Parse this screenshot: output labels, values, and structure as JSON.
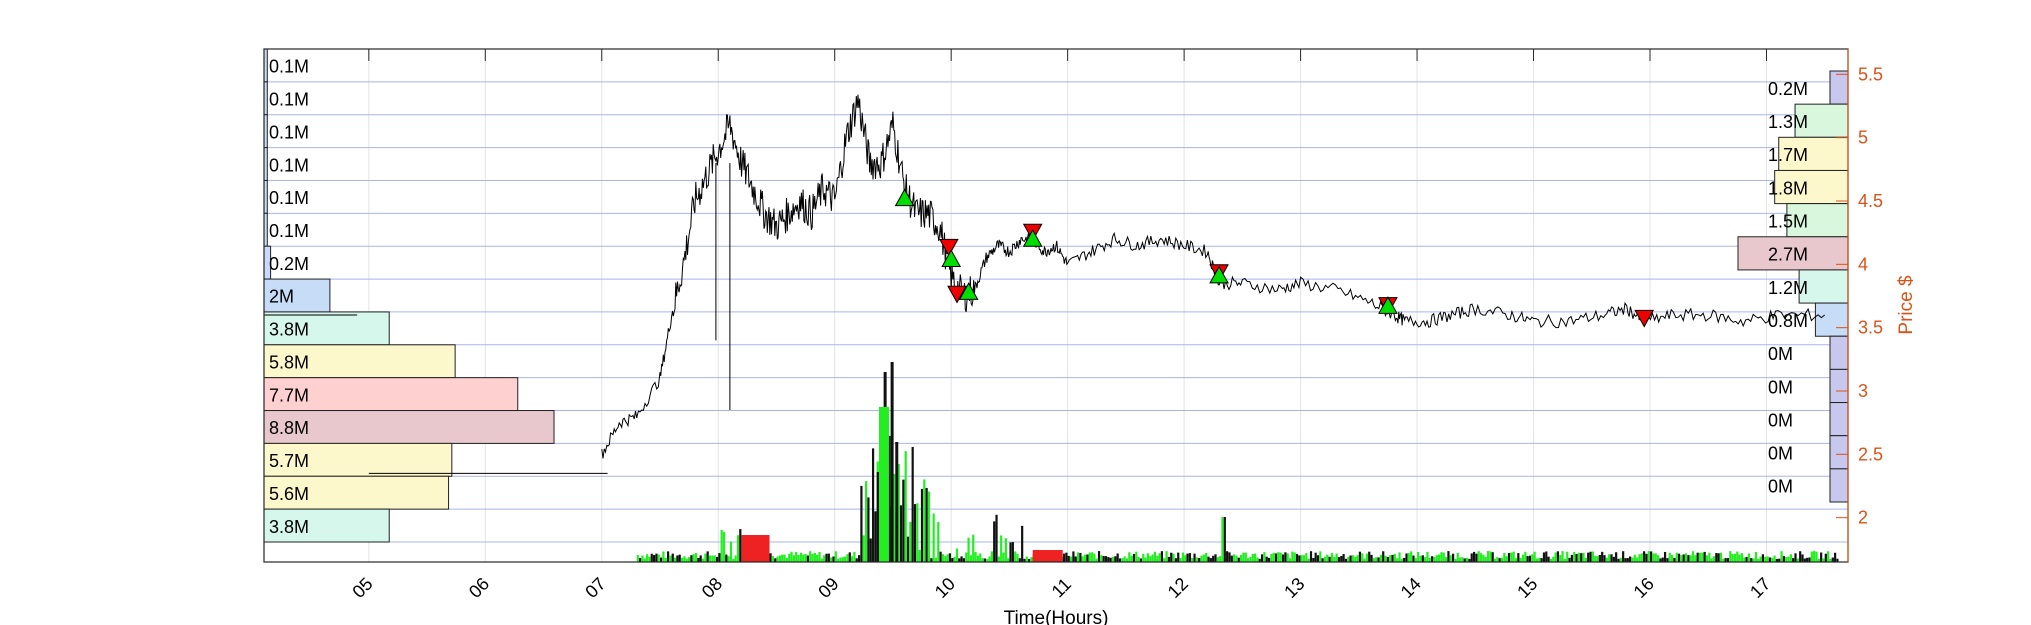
{
  "chart_data": {
    "type": "line",
    "xlabel": "Time(Hours)",
    "ylabel": "Price $",
    "xlim": [
      4.1,
      17.7
    ],
    "ylim": [
      1.65,
      5.7
    ],
    "x_ticks": [
      "05",
      "06",
      "07",
      "08",
      "09",
      "10",
      "11",
      "12",
      "13",
      "14",
      "15",
      "16",
      "17"
    ],
    "x_tick_values": [
      5,
      6,
      7,
      8,
      9,
      10,
      11,
      12,
      13,
      14,
      15,
      16,
      17
    ],
    "y_ticks": [
      "2",
      "2.5",
      "3",
      "3.5",
      "4",
      "4.5",
      "5",
      "5.5"
    ],
    "y_tick_values": [
      2,
      2.5,
      3,
      3.5,
      4,
      4.5,
      5,
      5.5
    ],
    "grid": true,
    "price_series": {
      "x": [
        7.0,
        7.15,
        7.3,
        7.5,
        7.6,
        7.7,
        7.8,
        7.9,
        8.0,
        8.1,
        8.2,
        8.3,
        8.4,
        8.5,
        8.6,
        8.7,
        8.8,
        8.9,
        9.0,
        9.1,
        9.2,
        9.3,
        9.4,
        9.5,
        9.6,
        9.7,
        9.8,
        9.9,
        10.0,
        10.1,
        10.2,
        10.3,
        10.4,
        10.5,
        10.6,
        10.7,
        10.8,
        10.9,
        11.0,
        11.2,
        11.4,
        11.6,
        11.8,
        12.0,
        12.2,
        12.3,
        12.5,
        12.8,
        13.0,
        13.3,
        13.6,
        13.8,
        13.9,
        14.1,
        14.3,
        14.5,
        14.8,
        15.0,
        15.3,
        15.6,
        15.8,
        15.95,
        16.2,
        16.5,
        16.8,
        17.1,
        17.5
      ],
      "y": [
        2.5,
        2.75,
        2.8,
        3.1,
        3.6,
        4.0,
        4.5,
        4.7,
        4.9,
        5.1,
        4.8,
        4.6,
        4.4,
        4.3,
        4.4,
        4.5,
        4.4,
        4.6,
        4.5,
        5.0,
        5.3,
        4.8,
        4.8,
        5.1,
        4.6,
        4.4,
        4.4,
        4.3,
        3.9,
        3.75,
        3.8,
        4.05,
        4.15,
        4.1,
        4.2,
        4.2,
        4.1,
        4.15,
        4.0,
        4.1,
        4.2,
        4.15,
        4.2,
        4.15,
        4.1,
        3.85,
        3.85,
        3.8,
        3.85,
        3.8,
        3.7,
        3.6,
        3.55,
        3.55,
        3.6,
        3.65,
        3.6,
        3.55,
        3.55,
        3.6,
        3.65,
        3.55,
        3.6,
        3.6,
        3.55,
        3.6,
        3.6
      ]
    },
    "buy_markers": {
      "x": [
        9.6,
        10.0,
        10.15,
        10.7,
        12.3,
        13.75
      ],
      "y": [
        4.52,
        4.04,
        3.78,
        4.2,
        3.91,
        3.67
      ]
    },
    "sell_markers": {
      "x": [
        9.98,
        10.05,
        10.7,
        12.3,
        13.75,
        15.95
      ],
      "y": [
        4.14,
        3.77,
        4.26,
        3.94,
        3.68,
        3.58
      ]
    },
    "left_volume_profile": {
      "labels": [
        "0.1M",
        "0.1M",
        "0.1M",
        "0.1M",
        "0.1M",
        "0.1M",
        "0.2M",
        "2M",
        "3.8M",
        "5.8M",
        "7.7M",
        "8.8M",
        "5.7M",
        "5.6M",
        "3.8M"
      ],
      "values": [
        0.1,
        0.1,
        0.1,
        0.1,
        0.1,
        0.1,
        0.2,
        2,
        3.8,
        5.8,
        7.7,
        8.8,
        5.7,
        5.6,
        3.8
      ],
      "colors": [
        "#ccd9ff",
        "#ccd9ff",
        "#ccd9ff",
        "#ccd9ff",
        "#ccd9ff",
        "#ccd9ff",
        "#ccd9ff",
        "#c6dcf7",
        "#d5f7ec",
        "#fdf8cc",
        "#ffd0d0",
        "#e8c8cc",
        "#fdf8cc",
        "#fdf8cc",
        "#d5f7ec"
      ]
    },
    "right_volume_profile": {
      "labels": [
        "0.2M",
        "1.3M",
        "1.7M",
        "1.8M",
        "1.5M",
        "2.7M",
        "1.2M",
        "0.8M",
        "0M",
        "0M",
        "0M",
        "0M",
        "0M"
      ],
      "values": [
        0.2,
        1.3,
        1.7,
        1.8,
        1.5,
        2.7,
        1.2,
        0.8,
        0.05,
        0.05,
        0.05,
        0.05,
        0.05
      ],
      "colors": [
        "#c8c8ee",
        "#d8f7dc",
        "#fdf8cc",
        "#fdf8cc",
        "#d8f7dc",
        "#e8c8cc",
        "#d5f7ec",
        "#c6dcf7",
        "#c8c8ee",
        "#c8c8ee",
        "#c8c8ee",
        "#c8c8ee",
        "#c8c8ee"
      ]
    },
    "colors": {
      "price_line": "#000000",
      "price_axis": "#d95319",
      "grid": "#a9b3ee",
      "buy": "#00dd00",
      "sell": "#ee0000",
      "volume_buy": "#22ee22",
      "volume_sell": "#ee2222"
    }
  }
}
